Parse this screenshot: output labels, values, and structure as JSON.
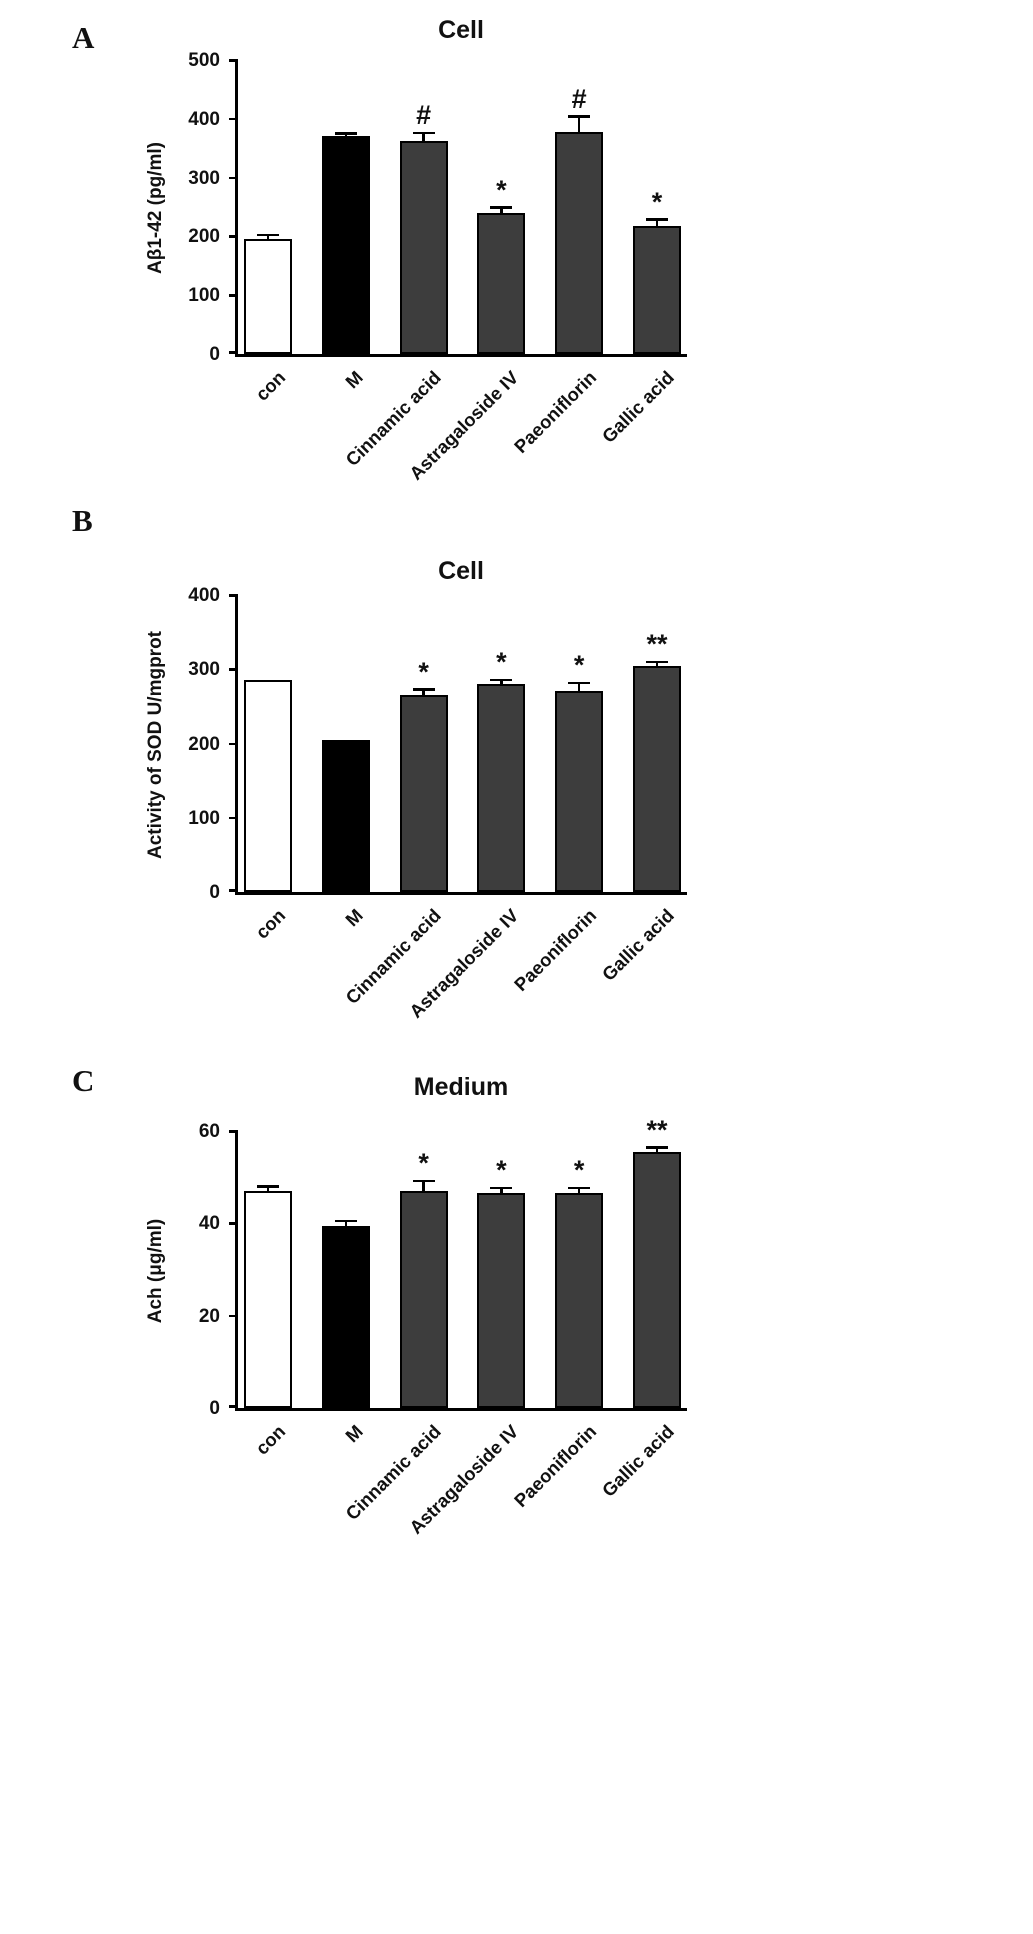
{
  "figure": {
    "background": "#ffffff"
  },
  "chart_data": [
    {
      "type": "bar",
      "panel_label": "A",
      "title": "Cell",
      "ylabel": "Aβ1-42 (pg/ml)",
      "xlabel": "",
      "ylim": [
        0,
        500
      ],
      "yticks": [
        0,
        100,
        200,
        300,
        400,
        500
      ],
      "grid": false,
      "legend": "none",
      "categories": [
        "con",
        "M",
        "Cinnamic acid",
        "Astragaloside IV",
        "Paeoniflorin",
        "Gallic acid"
      ],
      "values": [
        195,
        370,
        362,
        240,
        377,
        218
      ],
      "errors": [
        5,
        3,
        12,
        7,
        25,
        9
      ],
      "significance": [
        "",
        "",
        "#",
        "*",
        "#",
        "*"
      ],
      "bar_colors": [
        "#ffffff",
        "#000000",
        "#3d3d3d",
        "#3d3d3d",
        "#3d3d3d",
        "#3d3d3d"
      ],
      "bar_border_color": "#000000"
    },
    {
      "type": "bar",
      "panel_label": "B",
      "title": "Cell",
      "ylabel": "Activity of SOD U/mgprot",
      "xlabel": "",
      "ylim": [
        0,
        400
      ],
      "yticks": [
        0,
        100,
        200,
        300,
        400
      ],
      "grid": false,
      "legend": "none",
      "categories": [
        "con",
        "M",
        "Cinnamic acid",
        "Astragaloside IV",
        "Paeoniflorin",
        "Gallic acid"
      ],
      "values": [
        285,
        205,
        265,
        280,
        271,
        304
      ],
      "errors": [
        0,
        0,
        6,
        4,
        9,
        4
      ],
      "significance": [
        "",
        "",
        "*",
        "*",
        "*",
        "**"
      ],
      "bar_colors": [
        "#ffffff",
        "#000000",
        "#3d3d3d",
        "#3d3d3d",
        "#3d3d3d",
        "#3d3d3d"
      ],
      "bar_border_color": "#000000"
    },
    {
      "type": "bar",
      "panel_label": "C",
      "title": "Medium",
      "ylabel": "Ach (μg/ml)",
      "xlabel": "",
      "ylim": [
        0,
        60
      ],
      "yticks": [
        0,
        20,
        40,
        60
      ],
      "grid": false,
      "legend": "none",
      "categories": [
        "con",
        "M",
        "Cinnamic acid",
        "Astragaloside IV",
        "Paeoniflorin",
        "Gallic acid"
      ],
      "values": [
        47,
        39.5,
        47,
        46.5,
        46.5,
        55.5
      ],
      "errors": [
        0.7,
        0.7,
        1.9,
        0.9,
        0.9,
        0.7
      ],
      "significance": [
        "",
        "",
        "*",
        "*",
        "*",
        "**"
      ],
      "bar_colors": [
        "#ffffff",
        "#000000",
        "#3d3d3d",
        "#3d3d3d",
        "#3d3d3d",
        "#3d3d3d"
      ],
      "bar_border_color": "#000000"
    }
  ]
}
